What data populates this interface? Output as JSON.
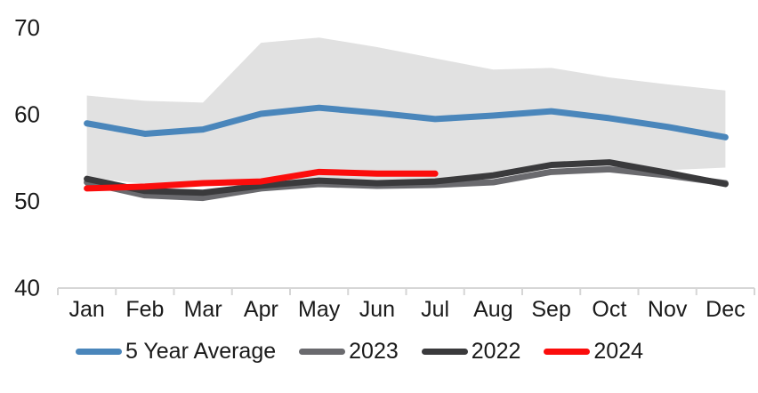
{
  "chart_data": {
    "type": "line",
    "title": "",
    "xlabel": "",
    "ylabel": "",
    "categories": [
      "Jan",
      "Feb",
      "Mar",
      "Apr",
      "May",
      "Jun",
      "Jul",
      "Aug",
      "Sep",
      "Oct",
      "Nov",
      "Dec"
    ],
    "ylim": [
      40,
      70
    ],
    "yticks": [
      40,
      50,
      60,
      70
    ],
    "grid": false,
    "legend_position": "bottom",
    "band": {
      "name": "5-year-range",
      "color": "#e1e1e1",
      "upper": [
        62.2,
        61.6,
        61.4,
        68.3,
        68.9,
        67.8,
        66.5,
        65.2,
        65.4,
        64.3,
        63.5,
        62.8
      ],
      "lower": [
        52.8,
        52.0,
        51.9,
        52.2,
        52.6,
        52.4,
        52.5,
        53.2,
        54.3,
        54.7,
        53.6,
        53.9
      ]
    },
    "series": [
      {
        "name": "5 Year Average",
        "color": "#4a86bb",
        "values": [
          59.0,
          57.8,
          58.3,
          60.1,
          60.8,
          60.2,
          59.5,
          59.9,
          60.4,
          59.6,
          58.6,
          57.4
        ]
      },
      {
        "name": "2023",
        "color": "#6a6a6e",
        "values": [
          52.2,
          50.7,
          50.4,
          51.5,
          52.0,
          51.8,
          51.9,
          52.2,
          53.4,
          53.7,
          53.0,
          52.1
        ]
      },
      {
        "name": "2022",
        "color": "#3a3a3c",
        "values": [
          52.6,
          51.2,
          51.0,
          51.8,
          52.4,
          52.1,
          52.3,
          53.0,
          54.2,
          54.5,
          53.3,
          52.0
        ]
      },
      {
        "name": "2024",
        "color": "#fb0d0c",
        "values": [
          51.5,
          51.7,
          52.1,
          52.3,
          53.4,
          53.2,
          53.2
        ]
      }
    ],
    "axis_color": "#d6d6d6",
    "label_color": "#1a1a1a"
  }
}
